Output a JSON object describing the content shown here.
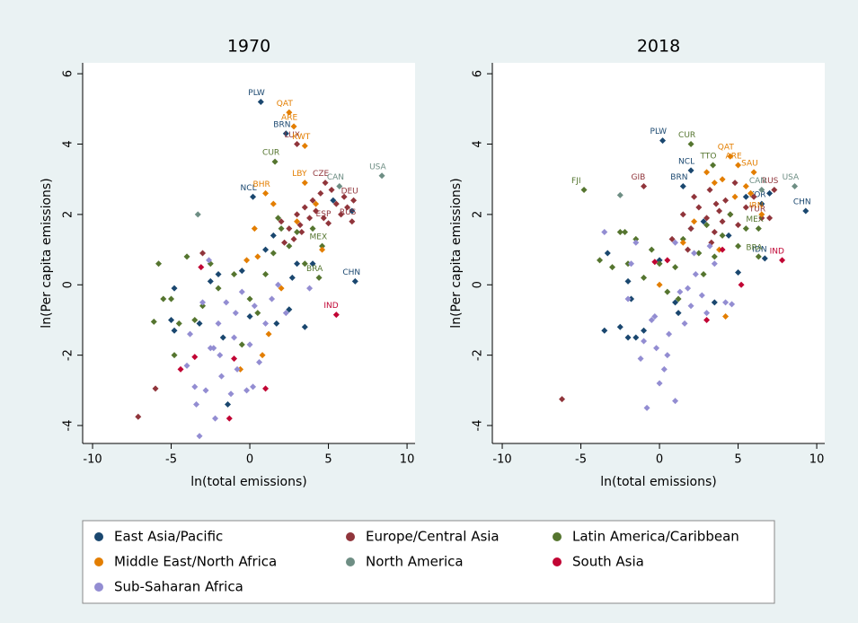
{
  "chart_data": [
    {
      "type": "scatter",
      "title": "1970",
      "x_label": "ln(total emissions)",
      "y_label": "ln(Per capita emissions)",
      "xlim": [
        -10.63,
        10.51
      ],
      "ylim": [
        -4.51,
        6.31
      ],
      "xticks": [
        -10,
        -5,
        0,
        5,
        10
      ],
      "yticks": [
        -4,
        -2,
        0,
        2,
        4,
        6
      ],
      "grid": false,
      "legend": "bottom",
      "series": [
        {
          "name": "East Asia/Pacific",
          "color": "#1a476f",
          "x": [
            0.7,
            2.3,
            0.2,
            6.7,
            -5,
            -4.8,
            -3.2,
            -2.5,
            -2,
            -0.5,
            1,
            1.5,
            2.5,
            3,
            3.5,
            1.7,
            -1.4,
            0,
            4,
            6.5,
            5.3,
            -4.8,
            -1.7,
            2.7
          ],
          "values": [
            5.2,
            4.3,
            2.5,
            0.1,
            -1,
            -1.3,
            -1.1,
            0.1,
            0.3,
            0.4,
            1,
            1.4,
            -0.7,
            0.6,
            -1.2,
            -1.1,
            -3.4,
            -0.9,
            0.6,
            2.1,
            2.4,
            -0.1,
            -1.5,
            0.2
          ],
          "labels": [
            "PLW",
            "BRN",
            "NCL",
            "CHN",
            null,
            null,
            null,
            null,
            null,
            null,
            null,
            null,
            null,
            null,
            null,
            null,
            null,
            null,
            null,
            null,
            null,
            null,
            null,
            null
          ]
        },
        {
          "name": "Europe/Central Asia",
          "color": "#90353b",
          "x": [
            3,
            4.8,
            6.6,
            6.5,
            5,
            2,
            2.5,
            3,
            3.2,
            3.5,
            3.8,
            4,
            4.2,
            4.5,
            5.5,
            5.8,
            6,
            6.2,
            2.2,
            3.3,
            4.7,
            5.2,
            -7.1,
            -6,
            -3,
            2.8
          ],
          "values": [
            4.0,
            2.9,
            2.4,
            1.8,
            1.75,
            1.8,
            1.6,
            2.0,
            1.7,
            2.2,
            1.9,
            2.4,
            2.1,
            2.6,
            2.3,
            2.0,
            2.5,
            2.2,
            1.2,
            1.5,
            1.9,
            2.7,
            -3.75,
            -2.95,
            0.9,
            1.3
          ],
          "labels": [
            "LUX",
            "CZE",
            "DEU",
            "RUS",
            "ESP",
            null,
            null,
            null,
            null,
            null,
            null,
            null,
            null,
            null,
            null,
            null,
            null,
            null,
            null,
            null,
            null,
            null,
            null,
            null,
            null,
            null
          ]
        },
        {
          "name": "Latin America/Caribbean",
          "color": "#55752f",
          "x": [
            1.6,
            4.6,
            4.4,
            -5.8,
            -5.5,
            -5,
            -4.5,
            -4,
            -3.5,
            -3,
            -2.5,
            -2,
            -1,
            0,
            0.5,
            1,
            1.5,
            2,
            2.5,
            3,
            3.5,
            4,
            -6.1,
            -4.8,
            -0.5,
            1.8
          ],
          "values": [
            3.5,
            1.1,
            0.2,
            0.6,
            -0.4,
            -0.4,
            -1.1,
            0.8,
            -1.0,
            -0.6,
            0.6,
            -0.1,
            0.3,
            -0.4,
            -0.8,
            0.3,
            0.9,
            1.6,
            1.1,
            1.5,
            0.6,
            1.6,
            -1.05,
            -2.0,
            -1.7,
            1.9
          ],
          "labels": [
            "CUR",
            "MEX",
            "BRA",
            null,
            null,
            null,
            null,
            null,
            null,
            null,
            null,
            null,
            null,
            null,
            null,
            null,
            null,
            null,
            null,
            null,
            null,
            null,
            null,
            null,
            null,
            null
          ]
        },
        {
          "name": "Middle East/North Africa",
          "color": "#e37e00",
          "x": [
            2.5,
            2.8,
            3.5,
            1,
            3.5,
            4.2,
            4.6,
            0.3,
            -0.2,
            0.5,
            1.2,
            2,
            -0.6,
            3,
            1.5,
            0.8
          ],
          "values": [
            4.9,
            4.5,
            3.95,
            2.6,
            2.9,
            2.3,
            1.0,
            1.6,
            0.7,
            0.8,
            -1.4,
            -0.1,
            -2.4,
            1.8,
            2.3,
            -2.0
          ],
          "labels": [
            "QAT",
            "ARE",
            "KWT",
            "BHR",
            "LBY",
            null,
            null,
            null,
            null,
            null,
            null,
            null,
            null,
            null,
            null,
            null
          ]
        },
        {
          "name": "North America",
          "color": "#6e8e84",
          "x": [
            8.4,
            5.7,
            -3.3
          ],
          "values": [
            3.1,
            2.8,
            2.0
          ],
          "labels": [
            "USA",
            "CAN",
            null
          ]
        },
        {
          "name": "South Asia",
          "color": "#c10534",
          "x": [
            5.5,
            -4.4,
            -3.5,
            -1.3,
            1,
            -1,
            -3.1
          ],
          "values": [
            -0.85,
            -2.4,
            -2.05,
            -3.8,
            -2.95,
            -2.1,
            0.5
          ],
          "labels": [
            "IND",
            null,
            null,
            null,
            null,
            null,
            null
          ]
        },
        {
          "name": "Sub-Saharan Africa",
          "color": "#938dd2",
          "x": [
            -4,
            -3.8,
            -3.5,
            -3.2,
            -3,
            -2.8,
            -2.5,
            -2.2,
            -2,
            -1.8,
            -1.5,
            -1.2,
            -1,
            -0.8,
            -0.5,
            -0.2,
            0,
            0.3,
            0.6,
            1,
            1.4,
            1.8,
            2.3,
            -3.4,
            -2.6,
            -1.9,
            -0.9,
            0.2,
            3.8,
            -2.3
          ],
          "values": [
            -2.3,
            -1.4,
            -2.9,
            -4.3,
            -0.5,
            -3.0,
            -1.8,
            -3.8,
            -1.1,
            -2.6,
            -0.5,
            -3.1,
            -1.5,
            -2.4,
            -0.2,
            -3.0,
            -1.7,
            -0.6,
            -2.2,
            -1.1,
            -0.4,
            0.0,
            -0.8,
            -3.4,
            0.7,
            -2.0,
            -0.8,
            -2.9,
            -0.1,
            -1.8
          ]
        }
      ]
    },
    {
      "type": "scatter",
      "title": "2018",
      "x_label": "ln(total emissions)",
      "y_label": "ln(Per capita emissions)",
      "xlim": [
        -10.63,
        10.51
      ],
      "ylim": [
        -4.51,
        6.31
      ],
      "xticks": [
        -10,
        -5,
        0,
        5,
        10
      ],
      "yticks": [
        -4,
        -2,
        0,
        2,
        4,
        6
      ],
      "grid": false,
      "series": [
        {
          "color": "#1a476f",
          "x": [
            0.2,
            2,
            1.5,
            6.5,
            9.3,
            6.7,
            -3.5,
            -2.5,
            -2,
            -1.5,
            -1,
            1,
            1.2,
            3.5,
            -3.3,
            -2,
            0,
            2,
            2.8,
            5,
            5.5,
            -1.8,
            4.4,
            7
          ],
          "values": [
            4.1,
            3.25,
            2.8,
            2.3,
            2.1,
            0.75,
            -1.3,
            -1.2,
            -1.5,
            -1.5,
            -1.3,
            -0.5,
            -0.8,
            -0.5,
            0.9,
            0.1,
            0.7,
            1.6,
            1.8,
            0.35,
            2.5,
            -0.4,
            1.4,
            2.6
          ],
          "labels": [
            "PLW",
            "NCL",
            "BRN",
            "KOR",
            "CHN",
            "IDN",
            null,
            null,
            null,
            null,
            null,
            null,
            null,
            null,
            null,
            null,
            null,
            null,
            null,
            null,
            null,
            null,
            null,
            null
          ]
        },
        {
          "color": "#90353b",
          "x": [
            -1,
            7.3,
            6.5,
            -6.2,
            1.5,
            2,
            2.5,
            3,
            3.2,
            3.5,
            3.8,
            4,
            4.2,
            4.5,
            5,
            5.5,
            6,
            3.3,
            2.2,
            4.8,
            7,
            0.8,
            1.8,
            3.6
          ],
          "values": [
            2.8,
            2.7,
            1.9,
            -3.25,
            2.0,
            1.6,
            2.2,
            1.9,
            2.7,
            1.5,
            2.1,
            1.8,
            2.4,
            2.0,
            1.7,
            2.2,
            2.5,
            1.2,
            2.5,
            2.9,
            1.9,
            1.3,
            1.0,
            2.3
          ],
          "labels": [
            "GIB",
            "RUS",
            "TUR",
            null,
            null,
            null,
            null,
            null,
            null,
            null,
            null,
            null,
            null,
            null,
            null,
            null,
            null,
            null,
            null,
            null,
            null,
            null,
            null,
            null
          ]
        },
        {
          "color": "#55752f",
          "x": [
            2,
            3.4,
            6.3,
            6.3,
            -4.8,
            -3.8,
            -3,
            -2.5,
            -2,
            -1.5,
            -1,
            -0.5,
            0,
            0.5,
            1,
            1.5,
            2.5,
            3,
            3.5,
            4,
            4.5,
            5,
            5.5,
            -2.2,
            1.2,
            2.8
          ],
          "values": [
            4.0,
            3.4,
            1.6,
            0.8,
            2.7,
            0.7,
            0.5,
            1.5,
            0.6,
            1.3,
            0.2,
            1.0,
            0.6,
            -0.2,
            0.5,
            1.3,
            0.9,
            1.7,
            0.8,
            1.4,
            2.0,
            1.1,
            1.6,
            1.5,
            -0.4,
            0.3
          ],
          "labels": [
            "CUR",
            "TTO",
            "MEX",
            "BRA",
            "FJI",
            null,
            null,
            null,
            null,
            null,
            null,
            null,
            null,
            null,
            null,
            null,
            null,
            null,
            null,
            null,
            null,
            null,
            null,
            null,
            null,
            null
          ]
        },
        {
          "color": "#e37e00",
          "x": [
            4.5,
            5,
            6,
            6.5,
            3,
            3.5,
            4,
            4.8,
            5.5,
            2.2,
            0,
            1.5,
            4.2,
            5.8,
            3.8
          ],
          "values": [
            3.65,
            3.4,
            3.2,
            2.0,
            3.2,
            2.9,
            3.0,
            2.5,
            2.8,
            1.8,
            0.0,
            1.2,
            -0.9,
            2.6,
            1.0
          ],
          "labels": [
            "QAT",
            "ARE",
            "SAU",
            "IRN",
            null,
            null,
            null,
            null,
            null,
            null,
            null,
            null,
            null,
            null,
            null
          ]
        },
        {
          "color": "#6e8e84",
          "x": [
            8.6,
            6.5,
            -2.5
          ],
          "values": [
            2.8,
            2.7,
            2.55
          ],
          "labels": [
            "USA",
            "CAN",
            null
          ]
        },
        {
          "color": "#c10534",
          "x": [
            7.8,
            0.5,
            3,
            5.2,
            4,
            -0.3
          ],
          "values": [
            0.7,
            0.7,
            -1.0,
            0.0,
            1.0,
            0.65
          ],
          "labels": [
            "IND",
            null,
            null,
            null,
            null,
            null
          ]
        },
        {
          "color": "#938dd2",
          "x": [
            -3.5,
            -2,
            -1.8,
            -1.5,
            -1,
            -0.8,
            -0.5,
            -0.2,
            0,
            0.3,
            0.6,
            1,
            1.3,
            1.6,
            2,
            2.3,
            2.7,
            3,
            3.5,
            4.2,
            4.6,
            1,
            -1.2,
            0.5,
            2.2,
            -0.3,
            1.8,
            3.2
          ],
          "values": [
            1.5,
            -0.4,
            0.6,
            1.2,
            -1.6,
            -3.5,
            -1.0,
            -1.8,
            -2.8,
            -2.4,
            -1.4,
            -3.3,
            -0.2,
            -1.1,
            -0.6,
            0.3,
            -0.3,
            -0.8,
            0.6,
            -0.5,
            -0.55,
            1.2,
            -2.1,
            -2.0,
            0.9,
            -0.9,
            -0.1,
            1.1
          ]
        }
      ]
    }
  ]
}
